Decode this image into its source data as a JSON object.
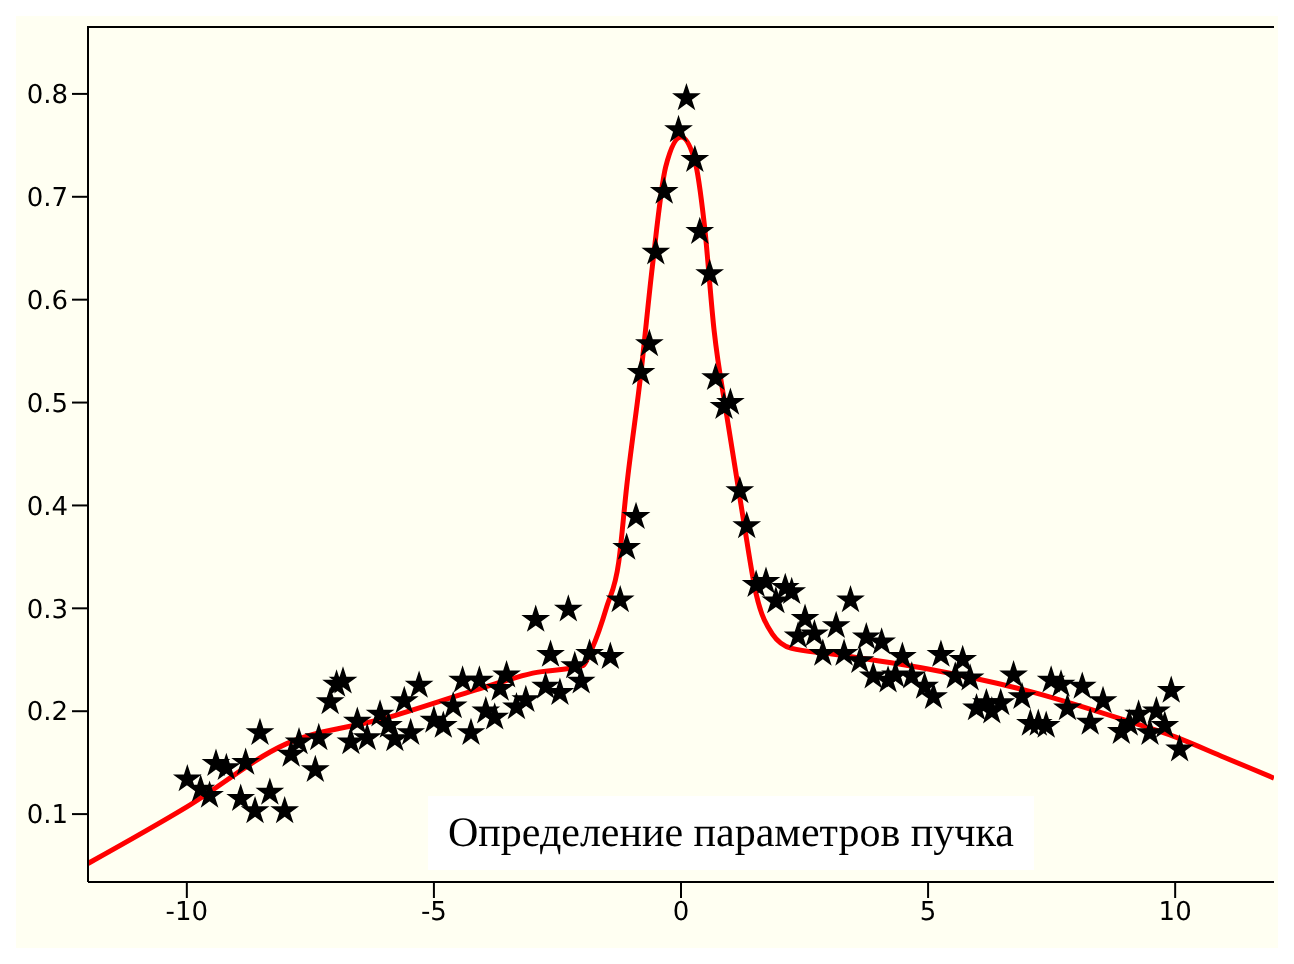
{
  "chart_data": {
    "type": "scatter",
    "xlim": [
      -12,
      12
    ],
    "xticks": [
      -10,
      -5,
      0,
      5,
      10
    ],
    "ylim": [
      0.034,
      0.866
    ],
    "yticks": [
      0.1,
      0.2,
      0.3,
      0.4,
      0.5,
      0.6,
      0.7,
      0.8
    ],
    "legend": false,
    "annotations": [
      "Определение параметров пучка"
    ],
    "series": [
      {
        "marker": "star",
        "color": "#000000",
        "x": [
          -9.99,
          -9.72,
          -9.54,
          -9.41,
          -9.2,
          -8.91,
          -8.81,
          -8.62,
          -8.52,
          -8.32,
          -8.02,
          -7.89,
          -7.73,
          -7.4,
          -7.33,
          -7.1,
          -6.97,
          -6.84,
          -6.68,
          -6.55,
          -6.35,
          -6.09,
          -5.92,
          -5.79,
          -5.6,
          -5.47,
          -5.3,
          -5.0,
          -4.81,
          -4.61,
          -4.42,
          -4.25,
          -4.08,
          -3.95,
          -3.77,
          -3.66,
          -3.53,
          -3.33,
          -3.14,
          -2.94,
          -2.74,
          -2.64,
          -2.45,
          -2.28,
          -2.15,
          -2.02,
          -1.85,
          -1.43,
          -1.23,
          -1.1,
          -0.91,
          -0.81,
          -0.64,
          -0.51,
          -0.34,
          -0.05,
          0.11,
          0.28,
          0.38,
          0.58,
          0.7,
          0.87,
          1.0,
          1.19,
          1.33,
          1.52,
          1.72,
          1.92,
          2.11,
          2.24,
          2.37,
          2.51,
          2.7,
          2.87,
          3.14,
          3.3,
          3.43,
          3.62,
          3.75,
          3.89,
          4.06,
          4.19,
          4.34,
          4.48,
          4.67,
          4.93,
          5.11,
          5.26,
          5.55,
          5.7,
          5.85,
          5.98,
          6.18,
          6.29,
          6.47,
          6.73,
          6.9,
          7.07,
          7.23,
          7.39,
          7.49,
          7.69,
          7.82,
          8.12,
          8.28,
          8.54,
          8.91,
          9.07,
          9.26,
          9.49,
          9.62,
          9.79,
          9.92,
          10.09
        ],
        "values": [
          0.134,
          0.124,
          0.118,
          0.149,
          0.145,
          0.115,
          0.15,
          0.103,
          0.179,
          0.121,
          0.103,
          0.158,
          0.17,
          0.143,
          0.174,
          0.209,
          0.226,
          0.229,
          0.17,
          0.19,
          0.174,
          0.197,
          0.186,
          0.173,
          0.21,
          0.179,
          0.225,
          0.191,
          0.186,
          0.205,
          0.23,
          0.179,
          0.23,
          0.2,
          0.194,
          0.222,
          0.235,
          0.204,
          0.211,
          0.289,
          0.224,
          0.255,
          0.218,
          0.299,
          0.244,
          0.229,
          0.256,
          0.253,
          0.308,
          0.359,
          0.389,
          0.529,
          0.557,
          0.646,
          0.705,
          0.765,
          0.796,
          0.736,
          0.666,
          0.625,
          0.524,
          0.496,
          0.5,
          0.414,
          0.38,
          0.323,
          0.326,
          0.307,
          0.32,
          0.316,
          0.273,
          0.29,
          0.275,
          0.256,
          0.283,
          0.256,
          0.308,
          0.249,
          0.272,
          0.234,
          0.267,
          0.23,
          0.235,
          0.253,
          0.234,
          0.224,
          0.214,
          0.255,
          0.234,
          0.25,
          0.232,
          0.203,
          0.208,
          0.2,
          0.208,
          0.235,
          0.214,
          0.188,
          0.188,
          0.186,
          0.23,
          0.226,
          0.203,
          0.224,
          0.189,
          0.21,
          0.18,
          0.188,
          0.197,
          0.179,
          0.2,
          0.186,
          0.22,
          0.163
        ]
      },
      {
        "type": "line",
        "marker": "none",
        "line_style": "solid",
        "color": "#ff0000",
        "x": [
          -12,
          -10,
          -8,
          -6,
          -4,
          -3,
          -2,
          -1.8,
          -1.5,
          -1.26,
          -1.1,
          -0.81,
          -0.58,
          -0.31,
          0,
          0.28,
          0.47,
          0.67,
          0.93,
          1.26,
          1.52,
          1.85,
          2.24,
          3,
          5,
          7,
          9,
          10,
          11,
          12
        ],
        "values": [
          0.052,
          0.107,
          0.168,
          0.193,
          0.223,
          0.237,
          0.244,
          0.261,
          0.302,
          0.345,
          0.418,
          0.529,
          0.632,
          0.729,
          0.758,
          0.735,
          0.674,
          0.57,
          0.486,
          0.387,
          0.314,
          0.275,
          0.261,
          0.256,
          0.241,
          0.22,
          0.191,
          0.175,
          0.155,
          0.135
        ]
      }
    ]
  }
}
